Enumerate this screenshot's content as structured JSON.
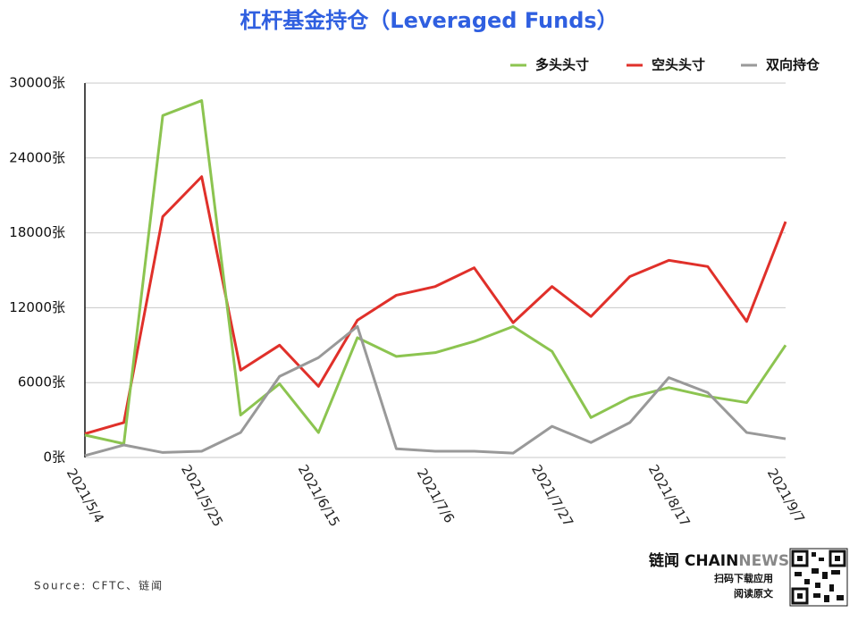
{
  "chart_data": {
    "type": "line",
    "title": "杠杆基金持仓（Leveraged Funds）",
    "categories": [
      "2021/5/4",
      null,
      null,
      "2021/5/25",
      null,
      null,
      "2021/6/15",
      null,
      null,
      "2021/7/6",
      null,
      null,
      "2021/7/27",
      null,
      null,
      "2021/8/17",
      null,
      null,
      "2021/9/7"
    ],
    "series": [
      {
        "name": "多头头寸",
        "color": "#8cc450",
        "values": [
          1800,
          1100,
          27400,
          28600,
          3400,
          5900,
          2000,
          9600,
          8100,
          8400,
          9300,
          10500,
          8500,
          3200,
          4800,
          5600,
          4900,
          4400,
          9000
        ]
      },
      {
        "name": "空头头寸",
        "color": "#e0302a",
        "values": [
          1900,
          2800,
          19300,
          22500,
          7000,
          9000,
          5700,
          11000,
          13000,
          13700,
          15200,
          10800,
          13700,
          11300,
          14500,
          15800,
          15300,
          10900,
          18900
        ]
      },
      {
        "name": "双向持仓",
        "color": "#999999",
        "values": [
          150,
          1000,
          400,
          500,
          2000,
          6500,
          8000,
          10500,
          700,
          500,
          500,
          350,
          2500,
          1200,
          2800,
          6400,
          5200,
          2000,
          1500
        ]
      }
    ],
    "ylim": [
      0,
      30000
    ],
    "yticks": [
      {
        "value": 0,
        "label": "0张"
      },
      {
        "value": 6000,
        "label": "6000张"
      },
      {
        "value": 12000,
        "label": "12000张"
      },
      {
        "value": 18000,
        "label": "18000张"
      },
      {
        "value": 24000,
        "label": "24000张"
      },
      {
        "value": 30000,
        "label": "30000张"
      }
    ],
    "grid": true,
    "legend": "top-right"
  },
  "footer": {
    "source": "Source: CFTC、链闻",
    "brand": [
      "链闻 ",
      "CHAIN",
      "NEWS"
    ],
    "download": "扫码下载应用",
    "read": "阅读原文"
  }
}
